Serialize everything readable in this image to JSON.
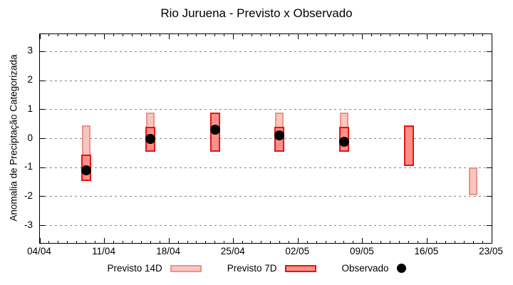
{
  "chart_data": {
    "type": "bar",
    "title": "Rio Juruena - Previsto x Observado",
    "xlabel": "",
    "ylabel": "Anomalia de Preciptação Categorizada",
    "grid": "horizontal-dotted",
    "legend_position": "bottom-center",
    "y_axis": {
      "ticks": [
        3,
        2,
        1,
        0,
        -1,
        -2,
        -3
      ],
      "range": [
        -3.6,
        3.6
      ]
    },
    "x_axis": {
      "range_days": [
        0,
        49
      ],
      "minor_tick_every_days": 1,
      "ticks": [
        {
          "label": "04/04",
          "day": 0
        },
        {
          "label": "11/04",
          "day": 7
        },
        {
          "label": "18/04",
          "day": 14
        },
        {
          "label": "25/04",
          "day": 21
        },
        {
          "label": "02/05",
          "day": 28
        },
        {
          "label": "09/05",
          "day": 35
        },
        {
          "label": "16/05",
          "day": 42
        },
        {
          "label": "23/05",
          "day": 49
        }
      ]
    },
    "series": [
      {
        "name": "Previsto 14D",
        "type": "range",
        "fill": "#f9c6c0",
        "border": "#ec9287",
        "points": [
          {
            "date": "09/04",
            "day": 5,
            "top": 0.45,
            "bottom": -1.45
          },
          {
            "date": "16/04",
            "day": 12,
            "top": 0.9,
            "bottom": -0.45
          },
          {
            "date": "30/04",
            "day": 26,
            "top": 0.9,
            "bottom": -0.45
          },
          {
            "date": "07/05",
            "day": 33,
            "top": 0.9,
            "bottom": -0.45
          },
          {
            "date": "21/05",
            "day": 47,
            "top": -1.0,
            "bottom": -1.95
          }
        ]
      },
      {
        "name": "Previsto 7D",
        "type": "range",
        "fill": "#f8918c",
        "border": "#e81313",
        "points": [
          {
            "date": "09/04",
            "day": 5,
            "top": -0.55,
            "bottom": -1.45
          },
          {
            "date": "16/04",
            "day": 12,
            "top": 0.4,
            "bottom": -0.45
          },
          {
            "date": "23/04",
            "day": 19,
            "top": 0.9,
            "bottom": -0.45
          },
          {
            "date": "30/04",
            "day": 26,
            "top": 0.4,
            "bottom": -0.45
          },
          {
            "date": "07/05",
            "day": 33,
            "top": 0.4,
            "bottom": -0.45
          },
          {
            "date": "14/05",
            "day": 40,
            "top": 0.45,
            "bottom": -0.95
          }
        ]
      },
      {
        "name": "Observado",
        "type": "dot",
        "color": "#000000",
        "points": [
          {
            "date": "09/04",
            "day": 5,
            "value": -1.1
          },
          {
            "date": "16/04",
            "day": 12,
            "value": 0.0
          },
          {
            "date": "23/04",
            "day": 19,
            "value": 0.3
          },
          {
            "date": "30/04",
            "day": 26,
            "value": 0.1
          },
          {
            "date": "07/05",
            "day": 33,
            "value": -0.1
          }
        ]
      }
    ]
  }
}
